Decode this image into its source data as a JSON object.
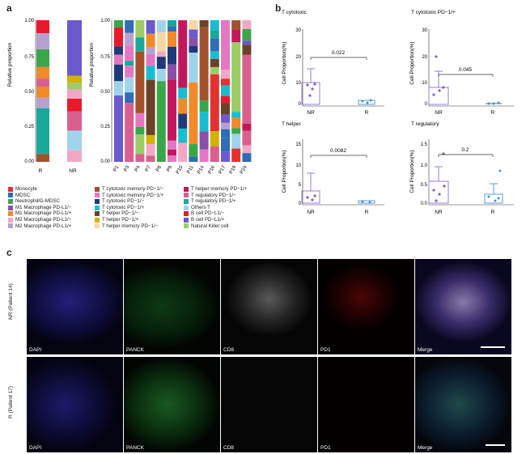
{
  "panel_letters": {
    "a": "a",
    "b": "b",
    "c": "c"
  },
  "legend": [
    {
      "label": "Monocyte",
      "color": "#e53030"
    },
    {
      "label": "MDSC",
      "color": "#2f6db5"
    },
    {
      "label": "Neutrophil/G-MDSC",
      "color": "#3aa64a"
    },
    {
      "label": "M1 Macrophage PD-L1/−",
      "color": "#8a4fa8"
    },
    {
      "label": "M1 Macrophage PD-L1/+",
      "color": "#f08a2a"
    },
    {
      "label": "M2 Macrophage PD-L1/−",
      "color": "#f2a7c6"
    },
    {
      "label": "M2 Macrophage PD-L1/+",
      "color": "#b8a0d0"
    },
    {
      "label": "T cytotoxic memory PD−1/−",
      "color": "#a0522d"
    },
    {
      "label": "T cytotoxic memory PD−1/+",
      "color": "#e377c2"
    },
    {
      "label": "T cytotoxic PD−1/−",
      "color": "#1f3a7a"
    },
    {
      "label": "T cytotoxic PD−1/+",
      "color": "#17becf"
    },
    {
      "label": "T helper PD−1/−",
      "color": "#6b4226"
    },
    {
      "label": "T helper PD−1/+",
      "color": "#d4b106"
    },
    {
      "label": "T helper memory PD−1/−",
      "color": "#f5d7a6"
    },
    {
      "label": "T helper memory PD−1/+",
      "color": "#c2185b"
    },
    {
      "label": "T regulatory PD−1/−",
      "color": "#d95f8f"
    },
    {
      "label": "T regulatory PD−1/+",
      "color": "#1aa89a"
    },
    {
      "label": "Others T",
      "color": "#9fd3ea"
    },
    {
      "label": "B cell PD−L1/−",
      "color": "#e8192c"
    },
    {
      "label": "B cell PD−L1/+",
      "color": "#6a5acd"
    },
    {
      "label": "Natural Killer cell",
      "color": "#9ccc65"
    }
  ],
  "chart_data": [
    {
      "type": "bar",
      "subtype": "stacked-100",
      "ylabel": "Relative proportion",
      "ylim": [
        0,
        1
      ],
      "yticks": [
        "0.00",
        "0.25",
        "0.50",
        "0.75",
        "1.00"
      ],
      "categories": [
        "R",
        "NR"
      ]
    },
    {
      "type": "bar",
      "subtype": "stacked-100",
      "ylabel": "Relative proportion",
      "ylim": [
        0,
        1
      ],
      "yticks": [
        "0.00",
        "0.25",
        "0.50",
        "0.75",
        "1.00"
      ],
      "categories": [
        "P1",
        "P3",
        "P4",
        "P7",
        "P8",
        "P9",
        "P10",
        "P11",
        "P14",
        "P16",
        "P17",
        "P19",
        "P24"
      ]
    },
    {
      "type": "scatter",
      "title": "T cytotoxic",
      "ylabel": "Cell Proportion(%)",
      "categories": [
        "NR",
        "R"
      ],
      "yticks": [
        "0",
        "10",
        "20",
        "30"
      ],
      "ylim": [
        0,
        30
      ],
      "pvalue": "0.022"
    },
    {
      "type": "scatter",
      "title": "T cytotoxic PD−1/+",
      "ylabel": "Cell Proportion(%)",
      "categories": [
        "NR",
        "R"
      ],
      "yticks": [
        "0",
        "10",
        "20",
        "30"
      ],
      "ylim": [
        0,
        30
      ],
      "pvalue": "0.045"
    },
    {
      "type": "scatter",
      "title": "T helper",
      "ylabel": "Cell Proportion(%)",
      "categories": [
        "NR",
        "R"
      ],
      "yticks": [
        "0",
        "5",
        "10",
        "15"
      ],
      "ylim": [
        0,
        15
      ],
      "pvalue": "0.0082"
    },
    {
      "type": "scatter",
      "title": "T regulatory",
      "ylabel": "Cell Proportion(%)",
      "categories": [
        "NR",
        "R"
      ],
      "yticks": [
        "0.0",
        "0.5",
        "1.0",
        "1.5"
      ],
      "ylim": [
        0,
        1.5
      ],
      "pvalue": "0.2"
    }
  ],
  "images": {
    "row1_label": "NR (Patient 14)",
    "row2_label": "R (Patient 17)",
    "channels": [
      "DAPI",
      "PANCK",
      "CD8",
      "PD1",
      "Merge"
    ]
  }
}
